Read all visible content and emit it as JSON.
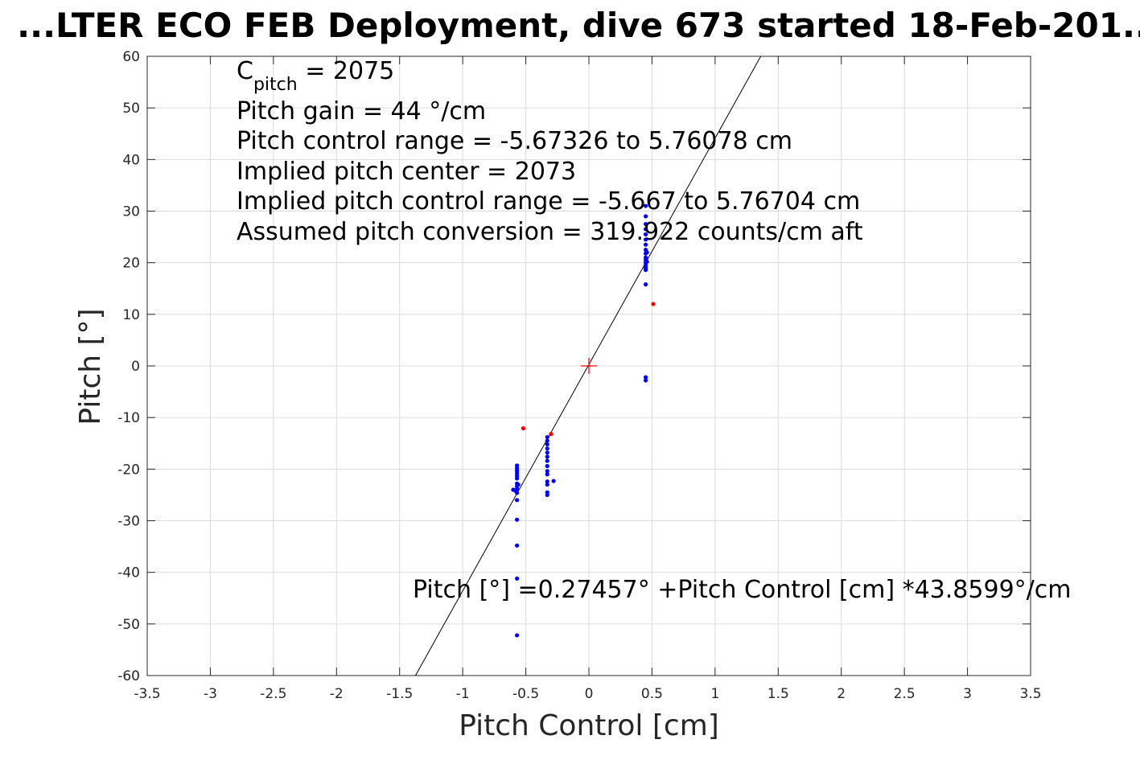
{
  "chart_data": {
    "type": "scatter",
    "title": "...LTER ECO FEB Deployment, dive 673 started 18-Feb-201...",
    "xlabel": "Pitch Control [cm]",
    "ylabel": "Pitch [°]",
    "xlim": [
      -3.5,
      3.5
    ],
    "ylim": [
      -60,
      60
    ],
    "xticks": [
      -3.5,
      -3,
      -2.5,
      -2,
      -1.5,
      -1,
      -0.5,
      0,
      0.5,
      1,
      1.5,
      2,
      2.5,
      3,
      3.5
    ],
    "xtick_labels": [
      "-3.5",
      "-3",
      "-2.5",
      "-2",
      "-1.5",
      "-1",
      "-0.5",
      "0",
      "0.5",
      "1",
      "1.5",
      "2",
      "2.5",
      "3",
      "3.5"
    ],
    "yticks": [
      -60,
      -50,
      -40,
      -30,
      -20,
      -10,
      0,
      10,
      20,
      30,
      40,
      50,
      60
    ],
    "ytick_labels": [
      "-60",
      "-50",
      "-40",
      "-30",
      "-20",
      "-10",
      "0",
      "10",
      "20",
      "30",
      "40",
      "50",
      "60"
    ],
    "grid": true,
    "annotations": {
      "cpitch_base": "C",
      "cpitch_sub": "pitch",
      "cpitch_value": " = 2075",
      "lines": [
        "Pitch gain = 44 °/cm",
        "Pitch control range = -5.67326 to 5.76078 cm",
        "Implied pitch center = 2073",
        "Implied pitch control range = -5.667 to 5.76704 cm",
        "Assumed pitch conversion = 319.922 counts/cm aft"
      ],
      "fit_equation": "Pitch [°] =0.27457° +Pitch Control [cm] *43.8599°/cm"
    },
    "fit_line": {
      "intercept": 0.27457,
      "slope": 43.8599,
      "color": "#000000"
    },
    "center_marker": {
      "x": 0,
      "y": 0,
      "color": "#ff0000"
    },
    "series": [
      {
        "color": "#0000ff",
        "points": [
          [
            0.45,
            31.0
          ],
          [
            0.45,
            29.0
          ],
          [
            0.45,
            27.5
          ],
          [
            0.45,
            26.5
          ],
          [
            0.45,
            25.5
          ],
          [
            0.45,
            24.5
          ],
          [
            0.45,
            23.5
          ],
          [
            0.45,
            22.5
          ],
          [
            0.45,
            21.8
          ],
          [
            0.45,
            21.0
          ],
          [
            0.45,
            20.5
          ],
          [
            0.45,
            20.0
          ],
          [
            0.45,
            19.5
          ],
          [
            0.45,
            19.0
          ],
          [
            0.45,
            18.6
          ],
          [
            0.46,
            22.0
          ],
          [
            0.46,
            20.2
          ],
          [
            0.45,
            15.8
          ],
          [
            0.45,
            -2.2
          ],
          [
            0.45,
            -2.8
          ],
          [
            -0.57,
            -19.3
          ],
          [
            -0.57,
            -19.8
          ],
          [
            -0.57,
            -20.3
          ],
          [
            -0.57,
            -20.8
          ],
          [
            -0.57,
            -21.3
          ],
          [
            -0.57,
            -21.8
          ],
          [
            -0.57,
            -22.8
          ],
          [
            -0.57,
            -23.3
          ],
          [
            -0.57,
            -23.8
          ],
          [
            -0.58,
            -24.2
          ],
          [
            -0.6,
            -24.0
          ],
          [
            -0.57,
            -24.6
          ],
          [
            -0.56,
            -23.0
          ],
          [
            -0.57,
            -26.0
          ],
          [
            -0.57,
            -29.8
          ],
          [
            -0.57,
            -34.8
          ],
          [
            -0.57,
            -41.2
          ],
          [
            -0.57,
            -52.2
          ],
          [
            -0.33,
            -13.8
          ],
          [
            -0.33,
            -14.5
          ],
          [
            -0.33,
            -15.2
          ],
          [
            -0.33,
            -16.0
          ],
          [
            -0.33,
            -16.8
          ],
          [
            -0.33,
            -17.6
          ],
          [
            -0.33,
            -18.4
          ],
          [
            -0.33,
            -19.4
          ],
          [
            -0.33,
            -20.4
          ],
          [
            -0.33,
            -21.0
          ],
          [
            -0.33,
            -22.4
          ],
          [
            -0.33,
            -23.0
          ],
          [
            -0.33,
            -24.5
          ],
          [
            -0.33,
            -25.0
          ],
          [
            -0.28,
            -22.3
          ]
        ]
      },
      {
        "color": "#ff0000",
        "points": [
          [
            0.51,
            12.0
          ],
          [
            -0.52,
            -12.1
          ],
          [
            -0.3,
            -13.2
          ]
        ]
      }
    ]
  }
}
